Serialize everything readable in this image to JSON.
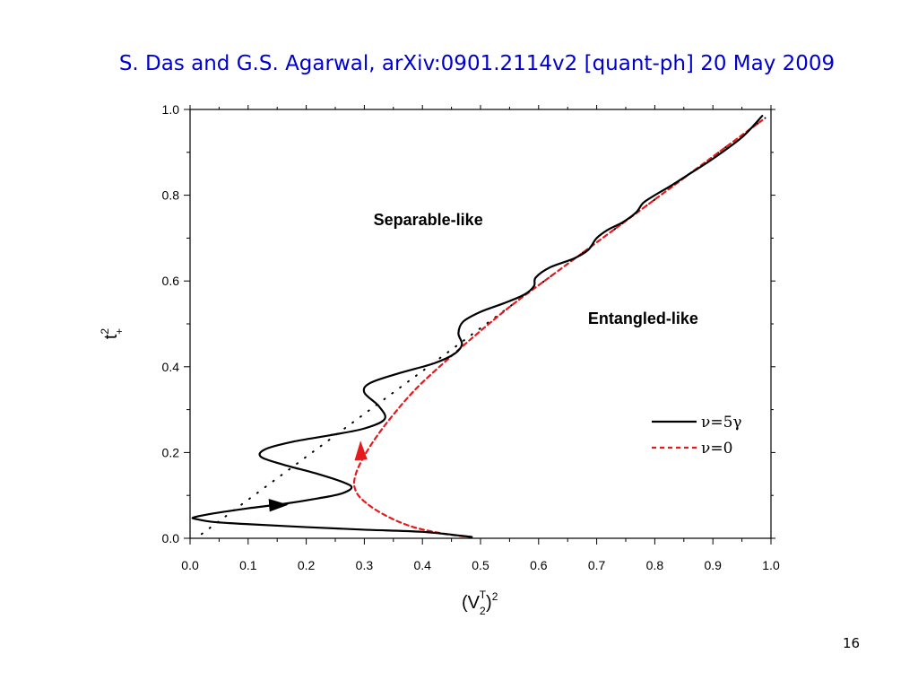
{
  "slide": {
    "title": "S. Das and G.S. Agarwal, arXiv:0901.2114v2 [quant-ph] 20 May 2009",
    "page_number": "16"
  },
  "chart_data": {
    "type": "line",
    "xlabel": "(V",
    "xlabel_sub": "2",
    "xlabel_sup": "T",
    "xlabel_close": ")",
    "xlabel_pow": "2",
    "ylabel": "t",
    "ylabel_sup": "2",
    "ylabel_sub": "+",
    "xlim": [
      0.0,
      1.0
    ],
    "ylim": [
      0.0,
      1.0
    ],
    "xticks": [
      "0.0",
      "0.1",
      "0.2",
      "0.3",
      "0.4",
      "0.5",
      "0.6",
      "0.7",
      "0.8",
      "0.9",
      "1.0"
    ],
    "yticks": [
      "0.0",
      "0.2",
      "0.4",
      "0.6",
      "0.8",
      "1.0"
    ],
    "grid": false,
    "legend_position": "right",
    "annotations": [
      {
        "text": "Separable-like",
        "x": 0.41,
        "y": 0.73
      },
      {
        "text": "Entangled-like",
        "x": 0.78,
        "y": 0.5
      }
    ],
    "series": [
      {
        "name": "ν=5γ",
        "color": "#000000",
        "style": "solid",
        "points": [
          [
            0.485,
            0.003
          ],
          [
            0.4,
            0.015
          ],
          [
            0.3,
            0.02
          ],
          [
            0.2,
            0.026
          ],
          [
            0.1,
            0.033
          ],
          [
            0.04,
            0.038
          ],
          [
            0.01,
            0.045
          ],
          [
            0.005,
            0.048
          ],
          [
            0.02,
            0.053
          ],
          [
            0.05,
            0.06
          ],
          [
            0.1,
            0.07
          ],
          [
            0.16,
            0.08
          ],
          [
            0.22,
            0.093
          ],
          [
            0.26,
            0.104
          ],
          [
            0.278,
            0.118
          ],
          [
            0.265,
            0.13
          ],
          [
            0.22,
            0.15
          ],
          [
            0.16,
            0.172
          ],
          [
            0.122,
            0.19
          ],
          [
            0.13,
            0.208
          ],
          [
            0.18,
            0.226
          ],
          [
            0.24,
            0.24
          ],
          [
            0.3,
            0.256
          ],
          [
            0.335,
            0.278
          ],
          [
            0.325,
            0.308
          ],
          [
            0.3,
            0.34
          ],
          [
            0.31,
            0.362
          ],
          [
            0.36,
            0.385
          ],
          [
            0.42,
            0.408
          ],
          [
            0.455,
            0.43
          ],
          [
            0.468,
            0.452
          ],
          [
            0.462,
            0.478
          ],
          [
            0.47,
            0.505
          ],
          [
            0.5,
            0.528
          ],
          [
            0.54,
            0.548
          ],
          [
            0.575,
            0.568
          ],
          [
            0.592,
            0.588
          ],
          [
            0.595,
            0.608
          ],
          [
            0.62,
            0.632
          ],
          [
            0.66,
            0.652
          ],
          [
            0.685,
            0.672
          ],
          [
            0.7,
            0.7
          ],
          [
            0.72,
            0.72
          ],
          [
            0.745,
            0.737
          ],
          [
            0.768,
            0.76
          ],
          [
            0.78,
            0.782
          ],
          [
            0.8,
            0.8
          ],
          [
            0.83,
            0.824
          ],
          [
            0.86,
            0.85
          ],
          [
            0.9,
            0.885
          ],
          [
            0.95,
            0.935
          ],
          [
            0.985,
            0.985
          ]
        ]
      },
      {
        "name": "ν=0",
        "color": "#e41a1c",
        "style": "dashed",
        "points": [
          [
            0.485,
            0.003
          ],
          [
            0.44,
            0.01
          ],
          [
            0.38,
            0.028
          ],
          [
            0.33,
            0.058
          ],
          [
            0.295,
            0.092
          ],
          [
            0.283,
            0.12
          ],
          [
            0.285,
            0.148
          ],
          [
            0.295,
            0.18
          ],
          [
            0.315,
            0.225
          ],
          [
            0.345,
            0.28
          ],
          [
            0.39,
            0.35
          ],
          [
            0.45,
            0.425
          ],
          [
            0.51,
            0.495
          ],
          [
            0.56,
            0.55
          ],
          [
            0.62,
            0.61
          ],
          [
            0.7,
            0.69
          ],
          [
            0.8,
            0.79
          ],
          [
            0.9,
            0.89
          ],
          [
            0.985,
            0.975
          ]
        ]
      },
      {
        "name": "",
        "color": "#000000",
        "style": "dotted",
        "points": [
          [
            0.02,
            0.01
          ],
          [
            0.99,
            0.98
          ]
        ]
      }
    ],
    "arrows": [
      {
        "series": 0,
        "x": 0.15,
        "y": 0.076,
        "direction": "right"
      },
      {
        "series": 1,
        "x": 0.295,
        "y": 0.195,
        "direction": "up"
      }
    ]
  }
}
